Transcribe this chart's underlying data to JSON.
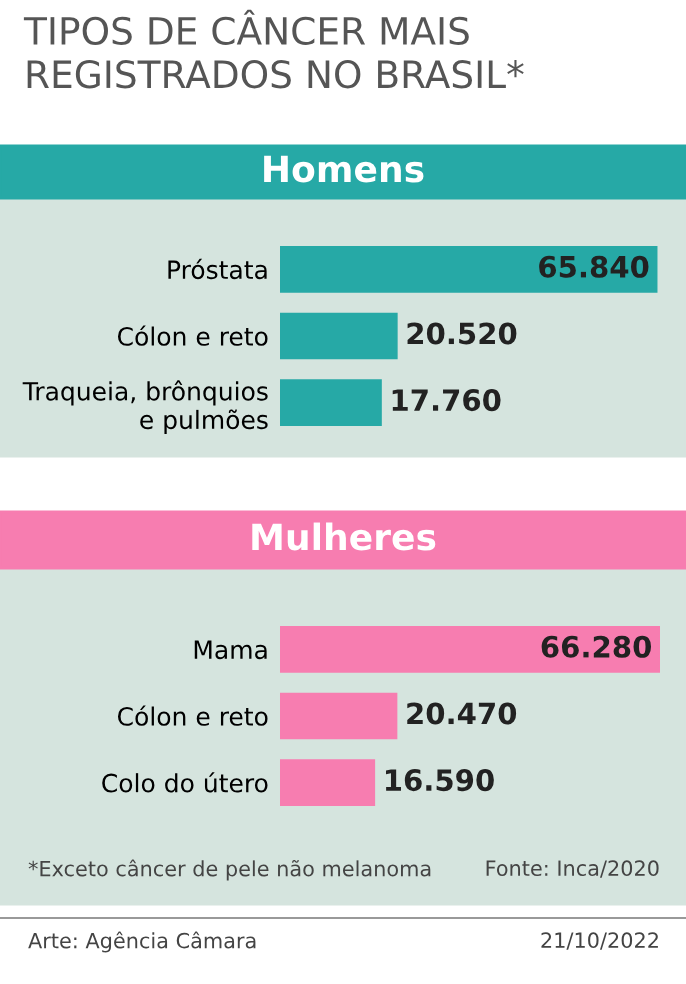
{
  "chart_data": [
    {
      "type": "bar",
      "orientation": "horizontal",
      "title": "TIPOS DE CÂNCER MAIS REGISTRADOS NO BRASIL*",
      "subtitle": "Homens",
      "categories": [
        "Próstata",
        "Cólon e reto",
        "Traqueia, brônquios\ne pulmões"
      ],
      "series": [
        {
          "color": "#26a9a6",
          "values": [
            65840,
            20520,
            17760
          ],
          "value_labels": [
            "65.840",
            "20.520",
            "17.760"
          ]
        }
      ]
    },
    {
      "type": "bar",
      "orientation": "horizontal",
      "subtitle": "Mulheres",
      "categories": [
        "Mama",
        "Cólon e reto",
        "Colo do útero"
      ],
      "series": [
        {
          "color": "#f77db0",
          "values": [
            66280,
            20470,
            16590
          ],
          "value_labels": [
            "66.280",
            "20.470",
            "16.590"
          ]
        }
      ],
      "annotations": [
        "*Exceto câncer de pele não melanoma",
        "Fonte: Inca/2020",
        "Arte: Agência Câmara",
        "21/10/2022"
      ]
    }
  ]
}
